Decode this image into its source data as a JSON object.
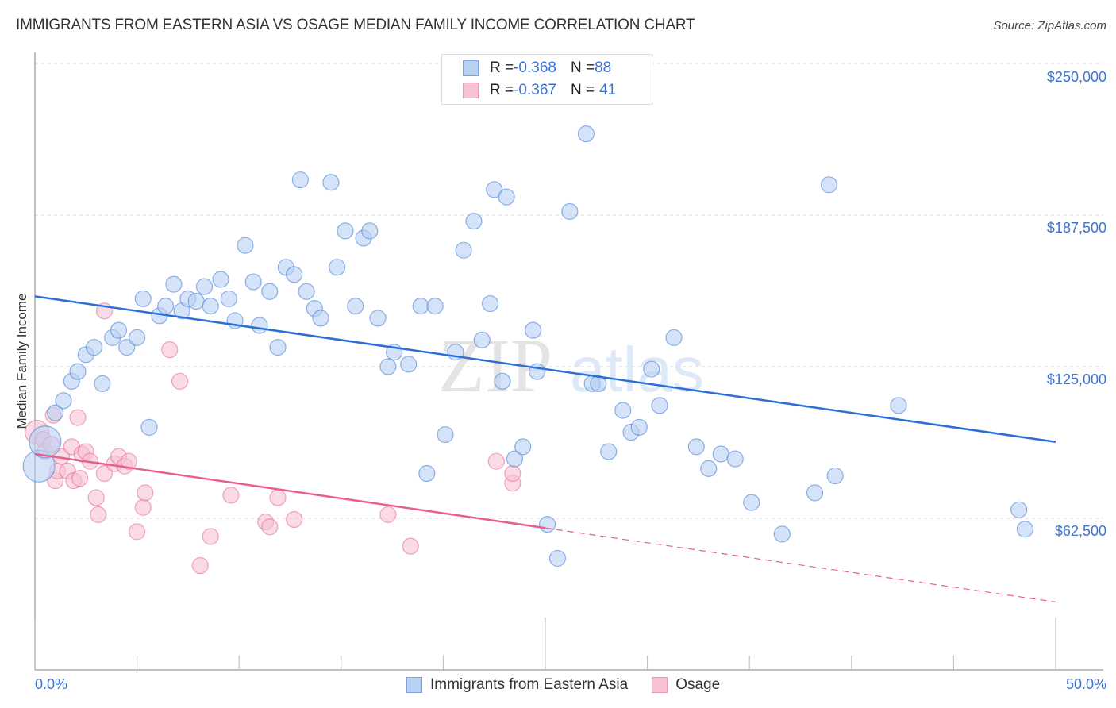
{
  "chart_data": {
    "type": "scatter",
    "title": "IMMIGRANTS FROM EASTERN ASIA VS OSAGE MEDIAN FAMILY INCOME CORRELATION CHART",
    "source": "Source: ZipAtlas.com",
    "xlabel": "",
    "ylabel": "Median Family Income",
    "xlim": [
      0,
      50
    ],
    "ylim": [
      0,
      262500
    ],
    "x_tick_labels": [
      "0.0%",
      "50.0%"
    ],
    "y_ticks": [
      62500,
      125000,
      187500,
      250000
    ],
    "y_tick_labels": [
      "$62,500",
      "$125,000",
      "$187,500",
      "$250,000"
    ],
    "grid": true,
    "watermark": {
      "zip": "ZIP",
      "atlas": "atlas"
    },
    "legend": {
      "position": "top-center",
      "entries": [
        {
          "r_label": "R = ",
          "r_value": "-0.368",
          "n_label": "N = ",
          "n_value": "88"
        },
        {
          "r_label": "R = ",
          "r_value": "-0.367",
          "n_label": "N = ",
          "n_value": "41"
        }
      ]
    },
    "bottom_legend": [
      "Immigrants from Eastern Asia",
      "Osage"
    ],
    "series": [
      {
        "name": "Immigrants from Eastern Asia",
        "color": "#3c74d4",
        "fill": "#b9d1f3",
        "trend": {
          "x": [
            0,
            50
          ],
          "y": [
            154000,
            94000
          ],
          "dashed_from": null
        },
        "points": [
          [
            0.2,
            84000,
            "L"
          ],
          [
            0.5,
            94000,
            "L"
          ],
          [
            1.0,
            106000
          ],
          [
            1.4,
            111000
          ],
          [
            1.8,
            119000
          ],
          [
            2.1,
            123000
          ],
          [
            2.5,
            130000
          ],
          [
            2.9,
            133000
          ],
          [
            3.3,
            118000
          ],
          [
            3.8,
            137000
          ],
          [
            4.1,
            140000
          ],
          [
            4.5,
            133000
          ],
          [
            5.0,
            137000
          ],
          [
            5.3,
            153000
          ],
          [
            5.6,
            100000
          ],
          [
            6.1,
            146000
          ],
          [
            6.4,
            150000
          ],
          [
            6.8,
            159000
          ],
          [
            7.2,
            148000
          ],
          [
            7.5,
            153000
          ],
          [
            7.9,
            152000
          ],
          [
            8.3,
            158000
          ],
          [
            8.6,
            150000
          ],
          [
            9.1,
            161000
          ],
          [
            9.5,
            153000
          ],
          [
            9.8,
            144000
          ],
          [
            10.3,
            175000
          ],
          [
            10.7,
            160000
          ],
          [
            11.0,
            142000
          ],
          [
            11.5,
            156000
          ],
          [
            11.9,
            133000
          ],
          [
            12.3,
            166000
          ],
          [
            12.7,
            163000
          ],
          [
            13.0,
            202000
          ],
          [
            13.3,
            156000
          ],
          [
            13.7,
            149000
          ],
          [
            14.0,
            145000
          ],
          [
            14.5,
            201000
          ],
          [
            14.8,
            166000
          ],
          [
            15.2,
            181000
          ],
          [
            15.7,
            150000
          ],
          [
            16.1,
            178000
          ],
          [
            16.4,
            181000
          ],
          [
            16.8,
            145000
          ],
          [
            17.3,
            125000
          ],
          [
            17.6,
            131000
          ],
          [
            18.3,
            126000
          ],
          [
            18.9,
            150000
          ],
          [
            19.2,
            81000
          ],
          [
            19.6,
            150000
          ],
          [
            20.1,
            97000
          ],
          [
            20.6,
            131000
          ],
          [
            21.0,
            173000
          ],
          [
            21.5,
            185000
          ],
          [
            21.9,
            136000
          ],
          [
            22.3,
            151000
          ],
          [
            22.5,
            198000
          ],
          [
            22.9,
            119000
          ],
          [
            23.1,
            195000
          ],
          [
            23.5,
            87000
          ],
          [
            23.9,
            92000
          ],
          [
            24.4,
            140000
          ],
          [
            24.6,
            123000
          ],
          [
            25.1,
            60000
          ],
          [
            25.6,
            46000
          ],
          [
            26.2,
            189000
          ],
          [
            27.0,
            221000
          ],
          [
            27.3,
            118000
          ],
          [
            27.6,
            118000
          ],
          [
            28.1,
            90000
          ],
          [
            28.8,
            107000
          ],
          [
            29.2,
            98000
          ],
          [
            29.6,
            100000
          ],
          [
            30.2,
            124000
          ],
          [
            30.6,
            109000
          ],
          [
            31.3,
            137000
          ],
          [
            32.4,
            92000
          ],
          [
            33.0,
            83000
          ],
          [
            33.6,
            89000
          ],
          [
            34.3,
            87000
          ],
          [
            35.1,
            69000
          ],
          [
            36.6,
            56000
          ],
          [
            38.2,
            73000
          ],
          [
            38.9,
            200000
          ],
          [
            39.2,
            80000
          ],
          [
            42.3,
            109000
          ],
          [
            48.2,
            66000
          ],
          [
            48.5,
            58000
          ]
        ]
      },
      {
        "name": "Osage",
        "color": "#e8608a",
        "fill": "#f7c2d2",
        "trend": {
          "x": [
            0,
            50
          ],
          "y": [
            89000,
            28000
          ],
          "solid_to": 25
        },
        "points": [
          [
            0.1,
            98000,
            "M"
          ],
          [
            0.4,
            95000
          ],
          [
            0.5,
            90000
          ],
          [
            0.8,
            93000
          ],
          [
            0.9,
            105000
          ],
          [
            1.0,
            78000
          ],
          [
            1.1,
            82000
          ],
          [
            1.3,
            88000
          ],
          [
            1.6,
            82000
          ],
          [
            1.8,
            92000
          ],
          [
            1.9,
            78000
          ],
          [
            2.1,
            104000
          ],
          [
            2.2,
            79000
          ],
          [
            2.3,
            89000
          ],
          [
            2.5,
            90000
          ],
          [
            2.7,
            86000
          ],
          [
            3.0,
            71000
          ],
          [
            3.1,
            64000
          ],
          [
            3.4,
            81000
          ],
          [
            3.4,
            148000
          ],
          [
            3.9,
            85000
          ],
          [
            4.1,
            88000
          ],
          [
            4.4,
            84000
          ],
          [
            4.6,
            86000
          ],
          [
            5.0,
            57000
          ],
          [
            5.3,
            67000
          ],
          [
            5.4,
            73000
          ],
          [
            6.6,
            132000
          ],
          [
            7.1,
            119000
          ],
          [
            8.1,
            43000
          ],
          [
            8.6,
            55000
          ],
          [
            9.6,
            72000
          ],
          [
            11.3,
            61000
          ],
          [
            11.5,
            59000
          ],
          [
            11.9,
            71000
          ],
          [
            12.7,
            62000
          ],
          [
            17.3,
            64000
          ],
          [
            18.4,
            51000
          ],
          [
            22.6,
            86000
          ],
          [
            23.4,
            77000
          ],
          [
            23.4,
            81000
          ]
        ]
      }
    ]
  }
}
